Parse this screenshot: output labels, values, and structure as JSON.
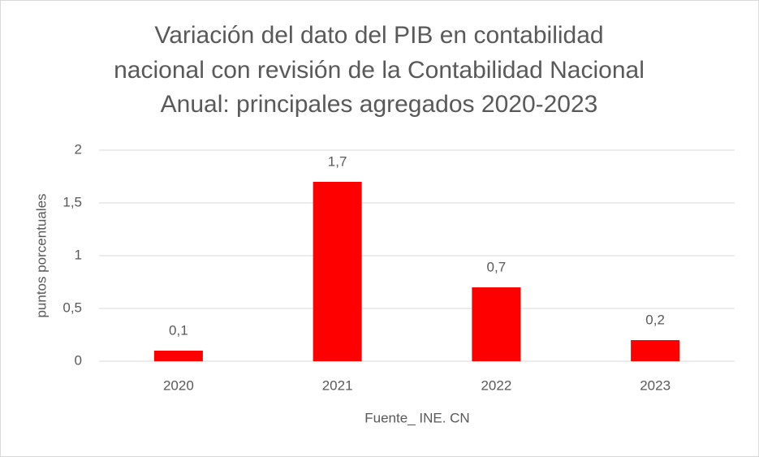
{
  "chart_data": {
    "type": "bar",
    "title": [
      "Variación del dato del PIB en contabilidad",
      "nacional con revisión de la Contabilidad Nacional",
      "Anual: principales agregados 2020-2023"
    ],
    "x_label": "Fuente_ INE. CN",
    "y_label": "puntos porcentuales",
    "categories": [
      "2020",
      "2021",
      "2022",
      "2023"
    ],
    "values": [
      0.1,
      1.7,
      0.7,
      0.2
    ],
    "value_labels": [
      "0,1",
      "1,7",
      "0,7",
      "0,2"
    ],
    "color": "#ff0000",
    "ylim": [
      0,
      2
    ],
    "yticks": [
      0,
      {
        "value": 0.5,
        "label": "0,5"
      },
      1,
      {
        "value": 1.5,
        "label": "1,5"
      },
      2
    ],
    "grid": true
  }
}
